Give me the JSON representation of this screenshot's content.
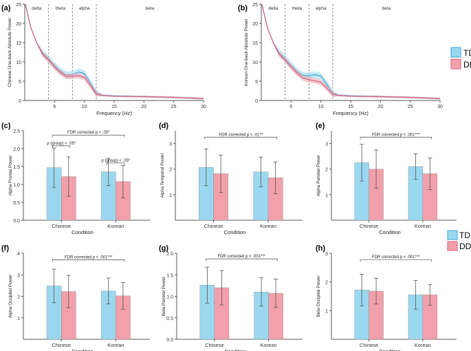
{
  "colors": {
    "td": "#9ad8f0",
    "dd": "#f2a0ab",
    "td_line": "#3aa6d8",
    "dd_line": "#d9607a",
    "axis": "#555555",
    "err": "#555555",
    "dash": "#777777"
  },
  "legend": {
    "td": "TD",
    "dd": "DD"
  },
  "chart_data": [
    {
      "panel": "(a)",
      "type": "line",
      "xlabel": "Frequency (Hz)",
      "ylabel": "Chinese One-back Absolute Power",
      "xlim": [
        0,
        30
      ],
      "ylim": [
        0,
        25
      ],
      "xticks": [
        5,
        10,
        15,
        20,
        25,
        30
      ],
      "yticks": [
        0,
        5,
        10,
        15,
        20,
        25
      ],
      "bands": [
        {
          "label": "delta",
          "from": 0,
          "to": 4
        },
        {
          "label": "theta",
          "from": 4,
          "to": 8
        },
        {
          "label": "alpha",
          "from": 8,
          "to": 12
        },
        {
          "label": "beta",
          "from": 12,
          "to": 30
        }
      ],
      "band_lines": [
        4,
        8,
        12
      ],
      "x": [
        0.1,
        1,
        2,
        3,
        4,
        5,
        6,
        7,
        8,
        9,
        10,
        11,
        12,
        13,
        15,
        20,
        25,
        30
      ],
      "series": [
        {
          "name": "TD",
          "values": [
            25,
            19,
            15,
            12.3,
            10.8,
            9.1,
            7.6,
            6.6,
            6.7,
            7.4,
            7.0,
            4.6,
            1.9,
            1.4,
            1.2,
            1.0,
            0.8,
            0.5
          ],
          "ci": 0.9
        },
        {
          "name": "DD",
          "values": [
            25,
            19,
            15,
            12.0,
            10.5,
            8.7,
            7.2,
            6.2,
            6.3,
            6.4,
            6.0,
            3.9,
            1.7,
            1.3,
            1.1,
            1.0,
            0.8,
            0.5
          ],
          "ci": 0.7
        }
      ]
    },
    {
      "panel": "(b)",
      "type": "line",
      "xlabel": "Frequency (Hz)",
      "ylabel": "Korean One-back Absolute Power",
      "xlim": [
        0,
        30
      ],
      "ylim": [
        0,
        25
      ],
      "xticks": [
        5,
        10,
        15,
        20,
        25,
        30
      ],
      "yticks": [
        0,
        5,
        10,
        15,
        20,
        25
      ],
      "bands": [
        {
          "label": "delta",
          "from": 0,
          "to": 4
        },
        {
          "label": "theta",
          "from": 4,
          "to": 8
        },
        {
          "label": "alpha",
          "from": 8,
          "to": 12
        },
        {
          "label": "beta",
          "from": 12,
          "to": 30
        }
      ],
      "band_lines": [
        4,
        8,
        12
      ],
      "x": [
        0.1,
        1,
        2,
        3,
        4,
        5,
        6,
        7,
        8,
        9,
        10,
        11,
        12,
        13,
        15,
        20,
        25,
        30
      ],
      "series": [
        {
          "name": "TD",
          "values": [
            25,
            19,
            15,
            12.4,
            10.9,
            9.2,
            7.6,
            6.5,
            6.4,
            6.7,
            6.3,
            4.2,
            1.8,
            1.4,
            1.2,
            1.0,
            0.8,
            0.5
          ],
          "ci": 0.9
        },
        {
          "name": "DD",
          "values": [
            25,
            19,
            15,
            12.0,
            10.5,
            8.7,
            7.1,
            5.8,
            5.4,
            5.1,
            4.7,
            3.2,
            1.6,
            1.3,
            1.1,
            1.0,
            0.8,
            0.5
          ],
          "ci": 0.7
        }
      ]
    },
    {
      "panel": "(c)",
      "type": "bar",
      "xlabel": "Condition",
      "ylabel": "Alpha Frontal Power",
      "categories": [
        "Chinese",
        "Korean"
      ],
      "ylim": [
        0,
        2.5
      ],
      "yticks": [
        "0.0",
        "0.5",
        "1.0",
        "1.5",
        "2.0",
        "2.5"
      ],
      "series": [
        {
          "name": "TD",
          "values": [
            1.47,
            1.35
          ],
          "err": [
            0.55,
            0.38
          ]
        },
        {
          "name": "DD",
          "values": [
            1.22,
            1.08
          ],
          "err": [
            0.55,
            0.45
          ]
        }
      ],
      "annotations": [
        {
          "text": "FDR corrected p < .05*",
          "from": 0,
          "to": 1,
          "level": 2.38
        },
        {
          "text": "p (group) < .05*",
          "from": 0,
          "to": 0,
          "level": 2.08
        },
        {
          "text": "p (group) < .05*",
          "from": 1,
          "to": 1,
          "level": 1.6
        }
      ]
    },
    {
      "panel": "(d)",
      "type": "bar",
      "xlabel": "Condition",
      "ylabel": "Alpha Temporal Power",
      "categories": [
        "Chinese",
        "Korean"
      ],
      "ylim": [
        0,
        3.5
      ],
      "yticks": [
        "1",
        "2",
        "3"
      ],
      "series": [
        {
          "name": "TD",
          "values": [
            2.07,
            1.89
          ],
          "err": [
            0.72,
            0.58
          ]
        },
        {
          "name": "DD",
          "values": [
            1.82,
            1.66
          ],
          "err": [
            0.73,
            0.62
          ]
        }
      ],
      "annotations": [
        {
          "text": "FDR corrected p < .01**",
          "from": 0,
          "to": 1,
          "level": 3.25
        }
      ]
    },
    {
      "panel": "(e)",
      "type": "bar",
      "xlabel": "Condition",
      "ylabel": "Alpha Parietal Power",
      "categories": [
        "Chinese",
        "Korean"
      ],
      "ylim": [
        0,
        3.5
      ],
      "yticks": [
        "1",
        "2",
        "3"
      ],
      "series": [
        {
          "name": "TD",
          "values": [
            2.25,
            2.1
          ],
          "err": [
            0.72,
            0.5
          ]
        },
        {
          "name": "DD",
          "values": [
            2.0,
            1.82
          ],
          "err": [
            0.75,
            0.62
          ]
        }
      ],
      "annotations": [
        {
          "text": "FDR corrected p < .001***",
          "from": 0,
          "to": 1,
          "level": 3.25
        }
      ]
    },
    {
      "panel": "(f)",
      "type": "bar",
      "xlabel": "Condition",
      "ylabel": "Alpha Occipital Power",
      "categories": [
        "Chinese",
        "Korean"
      ],
      "ylim": [
        0,
        4
      ],
      "yticks": [
        "1",
        "2",
        "3",
        "4"
      ],
      "series": [
        {
          "name": "TD",
          "values": [
            2.48,
            2.25
          ],
          "err": [
            0.78,
            0.6
          ]
        },
        {
          "name": "DD",
          "values": [
            2.22,
            2.02
          ],
          "err": [
            0.75,
            0.62
          ]
        }
      ],
      "annotations": [
        {
          "text": "FDR corrected p < .001***",
          "from": 0,
          "to": 1,
          "level": 3.7
        }
      ]
    },
    {
      "panel": "(g)",
      "type": "bar",
      "xlabel": "Condition",
      "ylabel": "Beta Parietal Power",
      "categories": [
        "Chinese",
        "Korean"
      ],
      "ylim": [
        0,
        2
      ],
      "yticks": [
        "0.0",
        "0.5",
        "1.0",
        "1.5",
        "2.0"
      ],
      "series": [
        {
          "name": "TD",
          "values": [
            1.26,
            1.1
          ],
          "err": [
            0.42,
            0.33
          ]
        },
        {
          "name": "DD",
          "values": [
            1.2,
            1.07
          ],
          "err": [
            0.4,
            0.33
          ]
        }
      ],
      "annotations": [
        {
          "text": "FDR corrected p < .001***",
          "from": 0,
          "to": 1,
          "level": 1.87
        }
      ]
    },
    {
      "panel": "(h)",
      "type": "bar",
      "xlabel": "Condition",
      "ylabel": "Beta Occipital Power",
      "categories": [
        "Chinese",
        "Korean"
      ],
      "ylim": [
        0,
        3
      ],
      "yticks": [
        "1",
        "2",
        "3"
      ],
      "series": [
        {
          "name": "TD",
          "values": [
            1.72,
            1.55
          ],
          "err": [
            0.55,
            0.5
          ]
        },
        {
          "name": "DD",
          "values": [
            1.68,
            1.55
          ],
          "err": [
            0.45,
            0.36
          ]
        }
      ],
      "annotations": [
        {
          "text": "FDR corrected p < .001***",
          "from": 0,
          "to": 1,
          "level": 2.78
        }
      ]
    }
  ]
}
